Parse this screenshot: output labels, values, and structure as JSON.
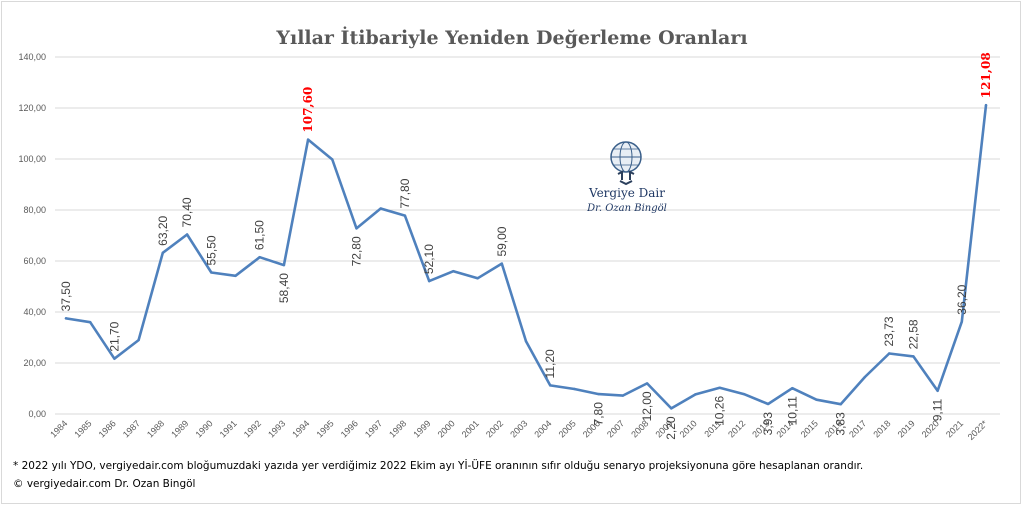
{
  "chart_data": {
    "type": "line",
    "title": "Yıllar İtibariyle Yeniden Değerleme Oranları",
    "xlabel": "",
    "ylabel": "",
    "ylim": [
      0,
      140
    ],
    "yticks": [
      "0,00",
      "20,00",
      "40,00",
      "60,00",
      "80,00",
      "100,00",
      "120,00",
      "140,00"
    ],
    "grid": true,
    "legend": "none",
    "line_color": "#4f81bd",
    "highlight_color": "#ff0000",
    "categories": [
      "1984",
      "1985",
      "1986",
      "1987",
      "1988",
      "1989",
      "1990",
      "1991",
      "1992",
      "1993",
      "1994",
      "1995",
      "1996",
      "1997",
      "1998",
      "1999",
      "2000",
      "2001",
      "2002",
      "2003",
      "2004",
      "2005",
      "2006",
      "2007",
      "2008",
      "2009",
      "2010",
      "2011",
      "2012",
      "2013",
      "2014",
      "2015",
      "2016",
      "2017",
      "2018",
      "2019",
      "2020",
      "2021",
      "2022*"
    ],
    "values": [
      37.5,
      36.0,
      21.7,
      29.0,
      63.2,
      70.4,
      55.5,
      54.2,
      61.5,
      58.4,
      107.6,
      99.8,
      72.8,
      80.6,
      77.8,
      52.1,
      56.0,
      53.2,
      59.0,
      28.5,
      11.2,
      9.8,
      7.8,
      7.2,
      12.0,
      2.2,
      7.7,
      10.26,
      7.8,
      3.93,
      10.11,
      5.6,
      3.83,
      14.5,
      23.73,
      22.58,
      9.11,
      36.2,
      121.08
    ],
    "data_labels": [
      {
        "index": 0,
        "text": "37,50",
        "highlight": false
      },
      {
        "index": 2,
        "text": "21,70",
        "highlight": false
      },
      {
        "index": 4,
        "text": "63,20",
        "highlight": false
      },
      {
        "index": 5,
        "text": "70,40",
        "highlight": false
      },
      {
        "index": 6,
        "text": "55,50",
        "highlight": false
      },
      {
        "index": 8,
        "text": "61,50",
        "highlight": false
      },
      {
        "index": 9,
        "text": "58,40",
        "highlight": false
      },
      {
        "index": 10,
        "text": "107,60",
        "highlight": true
      },
      {
        "index": 12,
        "text": "72,80",
        "highlight": false
      },
      {
        "index": 14,
        "text": "77,80",
        "highlight": false
      },
      {
        "index": 15,
        "text": "52,10",
        "highlight": false
      },
      {
        "index": 18,
        "text": "59,00",
        "highlight": false
      },
      {
        "index": 20,
        "text": "11,20",
        "highlight": false
      },
      {
        "index": 22,
        "text": "7,80",
        "highlight": false
      },
      {
        "index": 24,
        "text": "12,00",
        "highlight": false
      },
      {
        "index": 25,
        "text": "2,20",
        "highlight": false
      },
      {
        "index": 27,
        "text": "10,26",
        "highlight": false
      },
      {
        "index": 29,
        "text": "3,93",
        "highlight": false
      },
      {
        "index": 30,
        "text": "10,11",
        "highlight": false
      },
      {
        "index": 32,
        "text": "3,83",
        "highlight": false
      },
      {
        "index": 34,
        "text": "23,73",
        "highlight": false
      },
      {
        "index": 35,
        "text": "22,58",
        "highlight": false
      },
      {
        "index": 36,
        "text": "9,11",
        "highlight": false
      },
      {
        "index": 37,
        "text": "36,20",
        "highlight": false
      },
      {
        "index": 38,
        "text": "121,08",
        "highlight": true
      }
    ]
  },
  "watermark": {
    "name": "Vergiye Dair",
    "author": "Dr. Ozan Bingöl",
    "icon": "atlas-globe-icon"
  },
  "footnotes": {
    "note": "* 2022 yılı YDO, vergiyedair.com bloğumuzdaki yazıda yer verdiğimiz 2022 Ekim ayı Yİ-ÜFE oranının sıfır olduğu senaryo projeksiyonuna göre hesaplanan orandır.",
    "copyright": "© vergiyedair.com Dr. Ozan Bingöl"
  }
}
